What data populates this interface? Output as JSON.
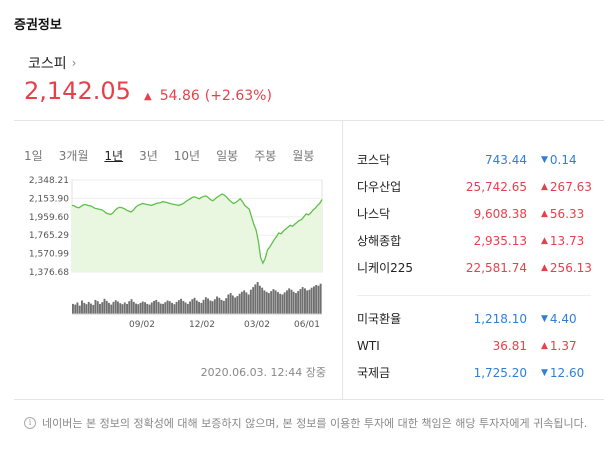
{
  "section_title": "증권정보",
  "index": {
    "name": "코스피",
    "chevron": "›",
    "price": "2,142.05",
    "change_arrow": "▲",
    "change": "54.86",
    "percent": "(+2.63%)"
  },
  "periods": [
    "1일",
    "3개월",
    "1년",
    "3년",
    "10년",
    "일봉",
    "주봉",
    "월봉"
  ],
  "active_period": "1년",
  "timestamp": "2020.06.03. 12:44 장중",
  "markets_group1": [
    {
      "name": "코스닥",
      "value": "743.44",
      "arrow": "▼",
      "change": "0.14",
      "dir": "down"
    },
    {
      "name": "다우산업",
      "value": "25,742.65",
      "arrow": "▲",
      "change": "267.63",
      "dir": "up"
    },
    {
      "name": "나스닥",
      "value": "9,608.38",
      "arrow": "▲",
      "change": "56.33",
      "dir": "up"
    },
    {
      "name": "상해종합",
      "value": "2,935.13",
      "arrow": "▲",
      "change": "13.73",
      "dir": "up"
    },
    {
      "name": "니케이225",
      "value": "22,581.74",
      "arrow": "▲",
      "change": "256.13",
      "dir": "up"
    }
  ],
  "markets_group2": [
    {
      "name": "미국환율",
      "value": "1,218.10",
      "arrow": "▼",
      "change": "4.40",
      "dir": "down"
    },
    {
      "name": "WTI",
      "value": "36.81",
      "arrow": "▲",
      "change": "1.37",
      "dir": "up"
    },
    {
      "name": "국제금",
      "value": "1,725.20",
      "arrow": "▼",
      "change": "12.60",
      "dir": "down"
    }
  ],
  "disclaimer": "네이버는 본 정보의 정확성에 대해 보증하지 않으며, 본 정보를 이용한 투자에 대한 책임은 해당 투자자에게 귀속됩니다.",
  "info_icon": "i",
  "colors": {
    "up": "#e8404b",
    "down": "#2f7fd6",
    "line": "#5fbf4a",
    "fill": "#e9f7e0",
    "volume": "#6f6f6f"
  },
  "chart_data": {
    "type": "area",
    "y_ticks": [
      "2,348.21",
      "2,153.90",
      "1,959.60",
      "1,765.29",
      "1,570.99",
      "1,376.68"
    ],
    "x_ticks": [
      "09/02",
      "12/02",
      "03/02",
      "06/01"
    ],
    "ylim": [
      1376.68,
      2348.21
    ],
    "values": [
      2080,
      2075,
      2060,
      2055,
      2070,
      2085,
      2090,
      2080,
      2075,
      2065,
      2050,
      2045,
      2040,
      2035,
      2020,
      2000,
      1990,
      1985,
      2000,
      2030,
      2050,
      2060,
      2055,
      2045,
      2030,
      2020,
      2010,
      2030,
      2060,
      2080,
      2090,
      2100,
      2095,
      2090,
      2085,
      2080,
      2090,
      2100,
      2105,
      2110,
      2120,
      2115,
      2110,
      2100,
      2095,
      2090,
      2085,
      2080,
      2090,
      2100,
      2120,
      2135,
      2150,
      2165,
      2170,
      2160,
      2150,
      2165,
      2175,
      2180,
      2160,
      2140,
      2130,
      2150,
      2170,
      2185,
      2200,
      2190,
      2170,
      2140,
      2120,
      2100,
      2110,
      2130,
      2150,
      2120,
      2080,
      2060,
      2040,
      1960,
      1880,
      1820,
      1700,
      1530,
      1470,
      1520,
      1610,
      1640,
      1680,
      1720,
      1750,
      1790,
      1780,
      1810,
      1830,
      1850,
      1870,
      1860,
      1880,
      1900,
      1920,
      1930,
      1960,
      1990,
      1980,
      2000,
      2030,
      2050,
      2080,
      2100,
      2142
    ],
    "volume": [
      30,
      28,
      34,
      25,
      40,
      33,
      29,
      36,
      31,
      27,
      42,
      38,
      30,
      35,
      45,
      39,
      33,
      28,
      36,
      41,
      37,
      32,
      29,
      34,
      30,
      38,
      44,
      36,
      31,
      29,
      33,
      37,
      35,
      30,
      28,
      34,
      39,
      42,
      36,
      31,
      30,
      35,
      40,
      38,
      33,
      29,
      36,
      41,
      45,
      39,
      34,
      30,
      37,
      44,
      48,
      40,
      36,
      33,
      42,
      50,
      46,
      40,
      38,
      44,
      52,
      48,
      42,
      39,
      47,
      58,
      62,
      55,
      49,
      53,
      60,
      66,
      70,
      64,
      58,
      72,
      80,
      88,
      95,
      84,
      78,
      70,
      66,
      62,
      68,
      74,
      70,
      65,
      60,
      58,
      64,
      70,
      76,
      72,
      66,
      62,
      68,
      74,
      80,
      76,
      70,
      72,
      78,
      82,
      86,
      84,
      90
    ]
  }
}
